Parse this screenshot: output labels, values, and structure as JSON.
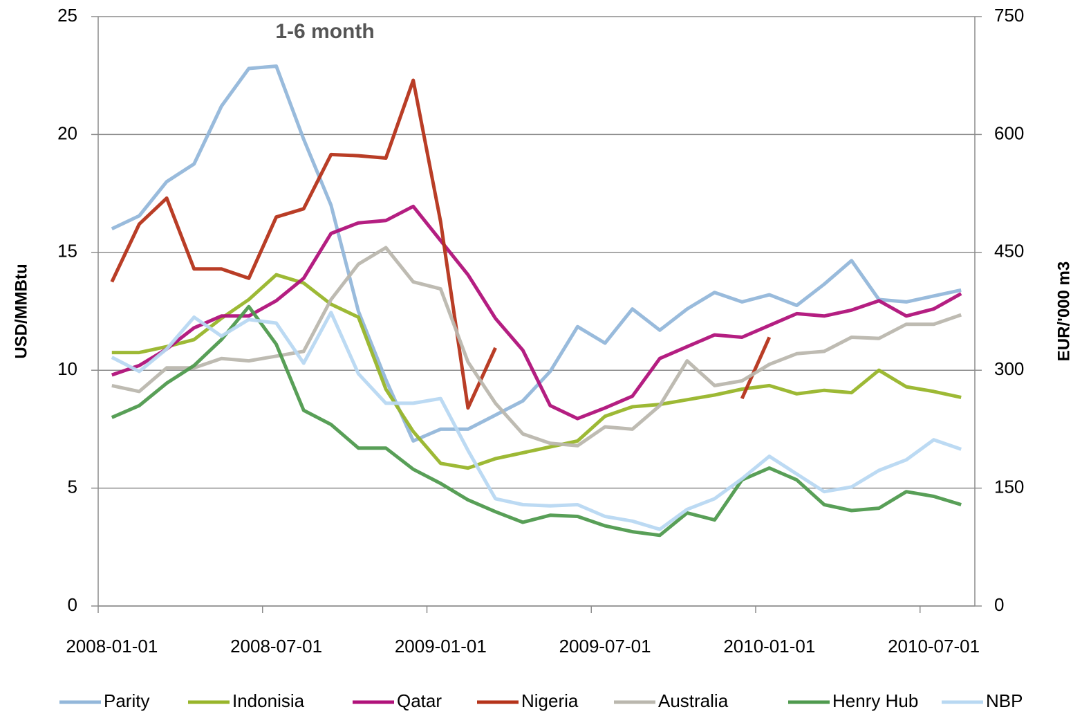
{
  "chart_data": {
    "type": "line",
    "title": "1-6 month",
    "y_label": "USD/MMBtu",
    "y2_label": "EUR/'000 m3",
    "categories": [
      "2008-01-01",
      null,
      null,
      null,
      null,
      null,
      "2008-07-01",
      null,
      null,
      null,
      null,
      null,
      "2009-01-01",
      null,
      null,
      null,
      null,
      null,
      "2009-07-01",
      null,
      null,
      null,
      null,
      null,
      "2010-01-01",
      null,
      null,
      null,
      null,
      null,
      "2010-07-01",
      null
    ],
    "ylim": [
      0,
      25
    ],
    "yticks": [
      0,
      5,
      10,
      15,
      20,
      25
    ],
    "y2lim": [
      0,
      750
    ],
    "y2ticks": [
      0,
      150,
      300,
      450,
      600,
      750
    ],
    "grid": true,
    "legend": "bottom",
    "series": [
      {
        "name": "Parity",
        "color": "#93b7da",
        "values": [
          16.0,
          16.55,
          18.0,
          18.75,
          21.2,
          22.8,
          22.9,
          19.8,
          17.0,
          12.5,
          9.6,
          7.0,
          7.5,
          7.5,
          8.1,
          8.7,
          9.95,
          11.85,
          11.15,
          12.6,
          11.7,
          12.6,
          13.3,
          12.9,
          13.2,
          12.75,
          13.65,
          14.65,
          13.0,
          12.9,
          13.15,
          13.4
        ]
      },
      {
        "name": "Indonisia",
        "color": "#98b52a",
        "values": [
          10.75,
          10.75,
          11.0,
          11.3,
          12.2,
          13.0,
          14.05,
          13.7,
          12.8,
          12.25,
          9.2,
          7.4,
          6.05,
          5.85,
          6.25,
          6.5,
          6.75,
          7.0,
          8.05,
          8.45,
          8.55,
          8.75,
          8.95,
          9.2,
          9.35,
          9.0,
          9.15,
          9.05,
          10.0,
          9.3,
          9.1,
          8.85
        ]
      },
      {
        "name": "Qatar",
        "color": "#b0127a",
        "values": [
          9.8,
          10.2,
          10.9,
          11.8,
          12.3,
          12.3,
          12.95,
          13.9,
          15.8,
          16.25,
          16.35,
          16.95,
          15.5,
          14.05,
          12.2,
          10.85,
          8.5,
          7.95,
          8.4,
          8.9,
          10.5,
          11.0,
          11.5,
          11.4,
          11.9,
          12.4,
          12.3,
          12.55,
          12.95,
          12.3,
          12.6,
          13.25
        ]
      },
      {
        "name": "Nigeria",
        "color": "#b5331a",
        "values": [
          13.75,
          16.2,
          17.3,
          14.3,
          14.3,
          13.9,
          16.5,
          16.85,
          19.15,
          19.1,
          19.0,
          22.3,
          16.3,
          8.4,
          10.95,
          null,
          null,
          null,
          null,
          null,
          null,
          null,
          null,
          8.8,
          11.4,
          null,
          null,
          null,
          null,
          null,
          null,
          null
        ]
      },
      {
        "name": "Australia",
        "color": "#bab7ae",
        "values": [
          9.35,
          9.1,
          10.1,
          10.1,
          10.5,
          10.4,
          10.6,
          10.8,
          13.0,
          14.5,
          15.2,
          13.75,
          13.45,
          10.35,
          8.6,
          7.3,
          6.9,
          6.8,
          7.6,
          7.5,
          8.5,
          10.4,
          9.35,
          9.55,
          10.25,
          10.7,
          10.8,
          11.4,
          11.35,
          11.95,
          11.95,
          12.35
        ]
      },
      {
        "name": "Henry Hub",
        "color": "#4f9a4e",
        "values": [
          8.0,
          8.5,
          9.45,
          10.2,
          11.3,
          12.7,
          11.1,
          8.3,
          7.7,
          6.7,
          6.7,
          5.8,
          5.2,
          4.5,
          4.0,
          3.55,
          3.85,
          3.8,
          3.4,
          3.15,
          3.0,
          3.95,
          3.65,
          5.35,
          5.85,
          5.35,
          4.3,
          4.05,
          4.15,
          4.85,
          4.65,
          4.3
        ]
      },
      {
        "name": "NBP",
        "color": "#b8d8f2",
        "values": [
          10.55,
          9.95,
          10.9,
          12.25,
          11.45,
          12.15,
          12.0,
          10.3,
          12.45,
          9.85,
          8.6,
          8.6,
          8.8,
          6.6,
          4.55,
          4.3,
          4.25,
          4.3,
          3.8,
          3.6,
          3.25,
          4.1,
          4.55,
          5.4,
          6.35,
          5.6,
          4.85,
          5.05,
          5.75,
          6.2,
          7.05,
          6.65
        ]
      }
    ]
  }
}
